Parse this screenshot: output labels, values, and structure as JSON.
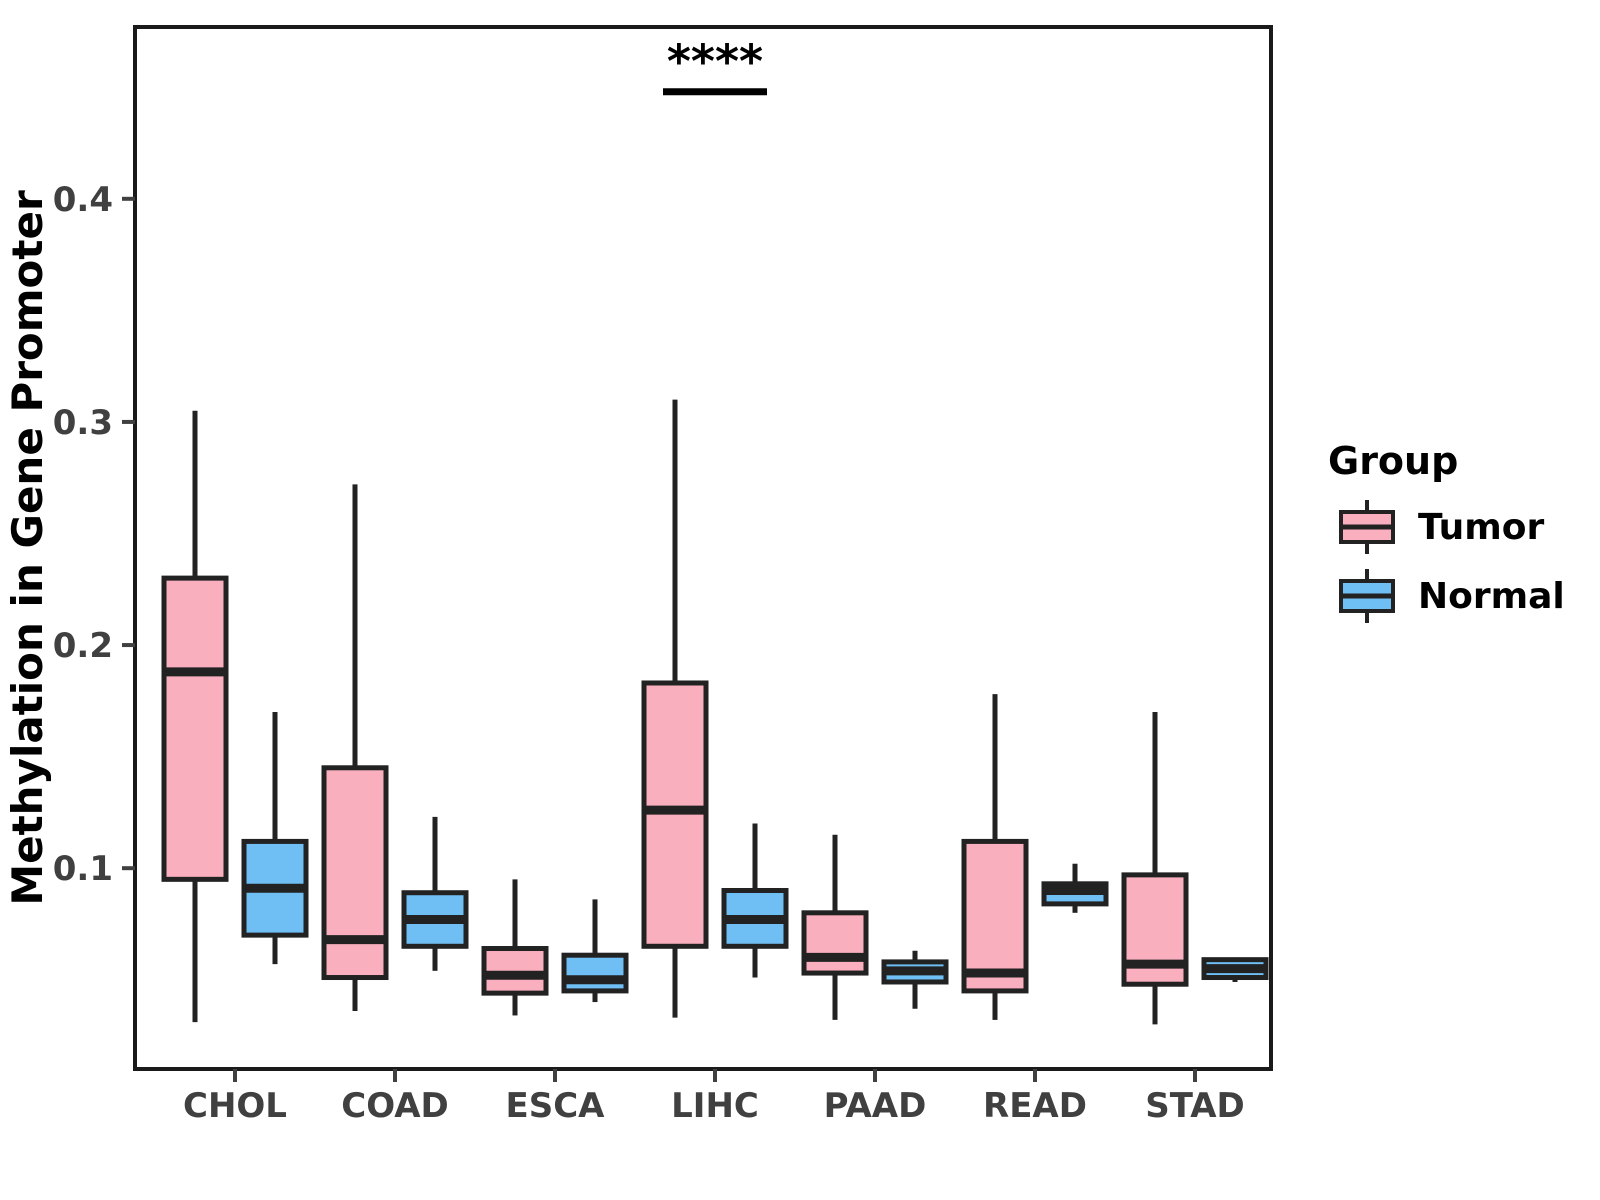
{
  "chart_data": {
    "type": "boxplot",
    "title": "",
    "xlabel": "",
    "ylabel": "Methylation in Gene Promoter",
    "categories": [
      "CHOL",
      "COAD",
      "ESCA",
      "LIHC",
      "PAAD",
      "READ",
      "STAD"
    ],
    "yticks": [
      0.1,
      0.2,
      0.3,
      0.4
    ],
    "ytick_labels": [
      "0.1",
      "0.2",
      "0.3",
      "0.4"
    ],
    "ylim": [
      0.01,
      0.477
    ],
    "grid": "off",
    "series": [
      {
        "name": "Tumor",
        "color": "#F9AFBE",
        "boxes": [
          {
            "category": "CHOL",
            "min": 0.031,
            "q1": 0.095,
            "median": 0.188,
            "q3": 0.23,
            "max": 0.305
          },
          {
            "category": "COAD",
            "min": 0.036,
            "q1": 0.051,
            "median": 0.068,
            "q3": 0.145,
            "max": 0.272
          },
          {
            "category": "ESCA",
            "min": 0.034,
            "q1": 0.044,
            "median": 0.052,
            "q3": 0.064,
            "max": 0.095
          },
          {
            "category": "LIHC",
            "min": 0.033,
            "q1": 0.065,
            "median": 0.126,
            "q3": 0.183,
            "max": 0.31
          },
          {
            "category": "PAAD",
            "min": 0.032,
            "q1": 0.053,
            "median": 0.06,
            "q3": 0.08,
            "max": 0.115
          },
          {
            "category": "READ",
            "min": 0.032,
            "q1": 0.045,
            "median": 0.053,
            "q3": 0.112,
            "max": 0.178
          },
          {
            "category": "STAD",
            "min": 0.03,
            "q1": 0.048,
            "median": 0.057,
            "q3": 0.097,
            "max": 0.17
          }
        ]
      },
      {
        "name": "Normal",
        "color": "#6FBEF4",
        "boxes": [
          {
            "category": "CHOL",
            "min": 0.057,
            "q1": 0.07,
            "median": 0.091,
            "q3": 0.112,
            "max": 0.17
          },
          {
            "category": "COAD",
            "min": 0.054,
            "q1": 0.065,
            "median": 0.077,
            "q3": 0.089,
            "max": 0.123
          },
          {
            "category": "ESCA",
            "min": 0.04,
            "q1": 0.045,
            "median": 0.05,
            "q3": 0.061,
            "max": 0.086
          },
          {
            "category": "LIHC",
            "min": 0.051,
            "q1": 0.065,
            "median": 0.077,
            "q3": 0.09,
            "max": 0.12
          },
          {
            "category": "PAAD",
            "min": 0.037,
            "q1": 0.049,
            "median": 0.054,
            "q3": 0.058,
            "max": 0.063
          },
          {
            "category": "READ",
            "min": 0.08,
            "q1": 0.084,
            "median": 0.09,
            "q3": 0.093,
            "max": 0.102
          },
          {
            "category": "STAD",
            "min": 0.049,
            "q1": 0.051,
            "median": 0.055,
            "q3": 0.059,
            "max": 0.06
          }
        ]
      }
    ],
    "annotations": [
      {
        "text": "****",
        "category": "LIHC",
        "bar_y_value": 0.448,
        "spans": "tumor-to-normal"
      }
    ],
    "legend": {
      "title": "Group",
      "position": "right",
      "entries": [
        {
          "label": "Tumor",
          "color": "#F9AFBE"
        },
        {
          "label": "Normal",
          "color": "#6FBEF4"
        }
      ]
    },
    "colors": {
      "box_outline": "#222222",
      "panel_border": "#1a1a1a",
      "axis_text": "#404040",
      "axis_title": "#000000",
      "annotation": "#000000",
      "background": "#ffffff"
    }
  }
}
